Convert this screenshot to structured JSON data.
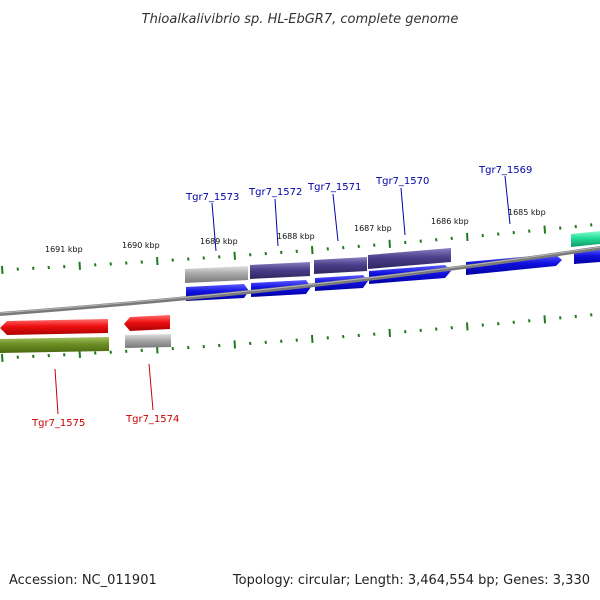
{
  "title": "Thioalkalivibrio sp. HL-EbGR7, complete genome",
  "footer": {
    "accession": "Accession: NC_011901",
    "stats": "Topology: circular; Length: 3,464,554 bp; Genes: 3,330"
  },
  "colors": {
    "backbone": "#7a7a7a",
    "tick": "#1f7a1f",
    "forward_label": "#0000aa",
    "reverse_label": "#cc0000",
    "cds_blue": "#1010e0",
    "cds_slate": "#4a3f8a",
    "gray_feature": "#a8a8a8",
    "red_feature": "#ee1111",
    "olive_feature": "#6b8e23",
    "teal_feature": "#22dd99"
  },
  "kbp_labels": [
    "1691 kbp",
    "1690 kbp",
    "1689 kbp",
    "1688 kbp",
    "1687 kbp",
    "1686 kbp",
    "1685 kbp"
  ],
  "gene_labels": {
    "forward": [
      "Tgr7_1573",
      "Tgr7_1572",
      "Tgr7_1571",
      "Tgr7_1570",
      "Tgr7_1569"
    ],
    "reverse": [
      "Tgr7_1575",
      "Tgr7_1574"
    ]
  }
}
